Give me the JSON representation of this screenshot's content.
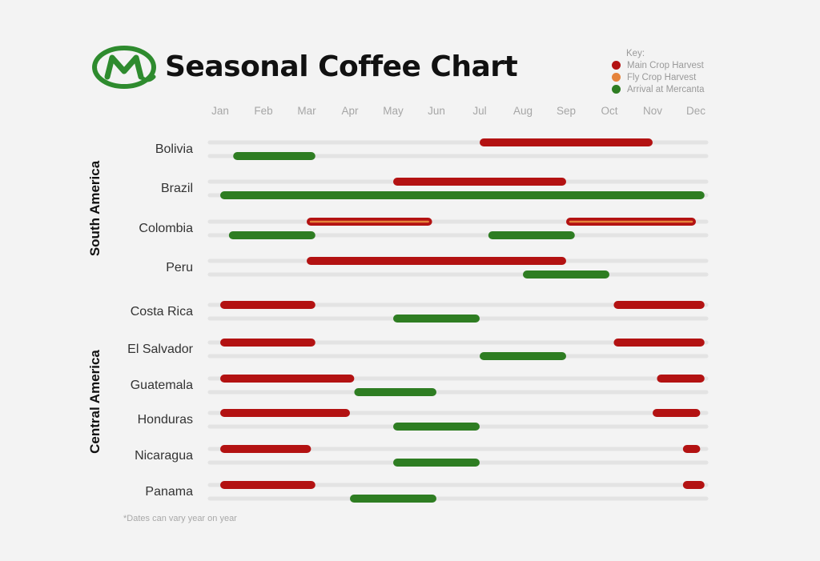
{
  "title": "Seasonal Coffee Chart",
  "logo_letter": "M",
  "legend": {
    "title": "Key:",
    "items": [
      {
        "label": "Main Crop Harvest",
        "color": "#b31212"
      },
      {
        "label": "Fly Crop Harvest",
        "color": "#e5833b"
      },
      {
        "label": "Arrival at Mercanta",
        "color": "#2e7d22"
      }
    ]
  },
  "footnote": "*Dates can vary year on year",
  "colors": {
    "main": "#b31212",
    "fly": "#e5833b",
    "arrival": "#2e7d22",
    "track": "#e3e3e3",
    "brand": "#2e8b2e"
  },
  "chart_data": {
    "type": "gantt",
    "x_categories": [
      "Jan",
      "Feb",
      "Mar",
      "Apr",
      "May",
      "Jun",
      "Jul",
      "Aug",
      "Sep",
      "Oct",
      "Nov",
      "Dec"
    ],
    "groups": [
      {
        "name": "South America",
        "countries": [
          "Bolivia",
          "Brazil",
          "Colombia",
          "Peru"
        ]
      },
      {
        "name": "Central America",
        "countries": [
          "Costa Rica",
          "El Salvador",
          "Guatemala",
          "Honduras",
          "Nicaragua",
          "Panama"
        ]
      }
    ],
    "rows": [
      {
        "country": "Bolivia",
        "harvest": [
          {
            "type": "main",
            "start": 7.0,
            "end": 11.0
          }
        ],
        "arrival": [
          {
            "start": 1.3,
            "end": 3.2
          }
        ]
      },
      {
        "country": "Brazil",
        "harvest": [
          {
            "type": "main",
            "start": 5.0,
            "end": 9.0
          }
        ],
        "arrival": [
          {
            "start": 1.0,
            "end": 12.2
          }
        ]
      },
      {
        "country": "Colombia",
        "harvest": [
          {
            "type": "main+fly",
            "start": 3.0,
            "end": 5.9
          },
          {
            "type": "main+fly",
            "start": 9.0,
            "end": 12.0
          }
        ],
        "arrival": [
          {
            "start": 1.2,
            "end": 3.2
          },
          {
            "start": 7.2,
            "end": 9.2
          }
        ]
      },
      {
        "country": "Peru",
        "harvest": [
          {
            "type": "main",
            "start": 3.0,
            "end": 9.0
          }
        ],
        "arrival": [
          {
            "start": 8.0,
            "end": 10.0
          }
        ]
      },
      {
        "country": "Costa Rica",
        "harvest": [
          {
            "type": "main",
            "start": 1.0,
            "end": 3.2
          },
          {
            "type": "main",
            "start": 10.1,
            "end": 12.2
          }
        ],
        "arrival": [
          {
            "start": 5.0,
            "end": 7.0
          }
        ]
      },
      {
        "country": "El Salvador",
        "harvest": [
          {
            "type": "main",
            "start": 1.0,
            "end": 3.2
          },
          {
            "type": "main",
            "start": 10.1,
            "end": 12.2
          }
        ],
        "arrival": [
          {
            "start": 7.0,
            "end": 9.0
          }
        ]
      },
      {
        "country": "Guatemala",
        "harvest": [
          {
            "type": "main",
            "start": 1.0,
            "end": 4.1
          },
          {
            "type": "main",
            "start": 11.1,
            "end": 12.2
          }
        ],
        "arrival": [
          {
            "start": 4.1,
            "end": 6.0
          }
        ]
      },
      {
        "country": "Honduras",
        "harvest": [
          {
            "type": "main",
            "start": 1.0,
            "end": 4.0
          },
          {
            "type": "main",
            "start": 11.0,
            "end": 12.1
          }
        ],
        "arrival": [
          {
            "start": 5.0,
            "end": 7.0
          }
        ]
      },
      {
        "country": "Nicaragua",
        "harvest": [
          {
            "type": "main",
            "start": 1.0,
            "end": 3.1
          },
          {
            "type": "main",
            "start": 11.7,
            "end": 12.1
          }
        ],
        "arrival": [
          {
            "start": 5.0,
            "end": 7.0
          }
        ]
      },
      {
        "country": "Panama",
        "harvest": [
          {
            "type": "main",
            "start": 1.0,
            "end": 3.2
          },
          {
            "type": "main",
            "start": 11.7,
            "end": 12.2
          }
        ],
        "arrival": [
          {
            "start": 4.0,
            "end": 6.0
          }
        ]
      }
    ]
  }
}
